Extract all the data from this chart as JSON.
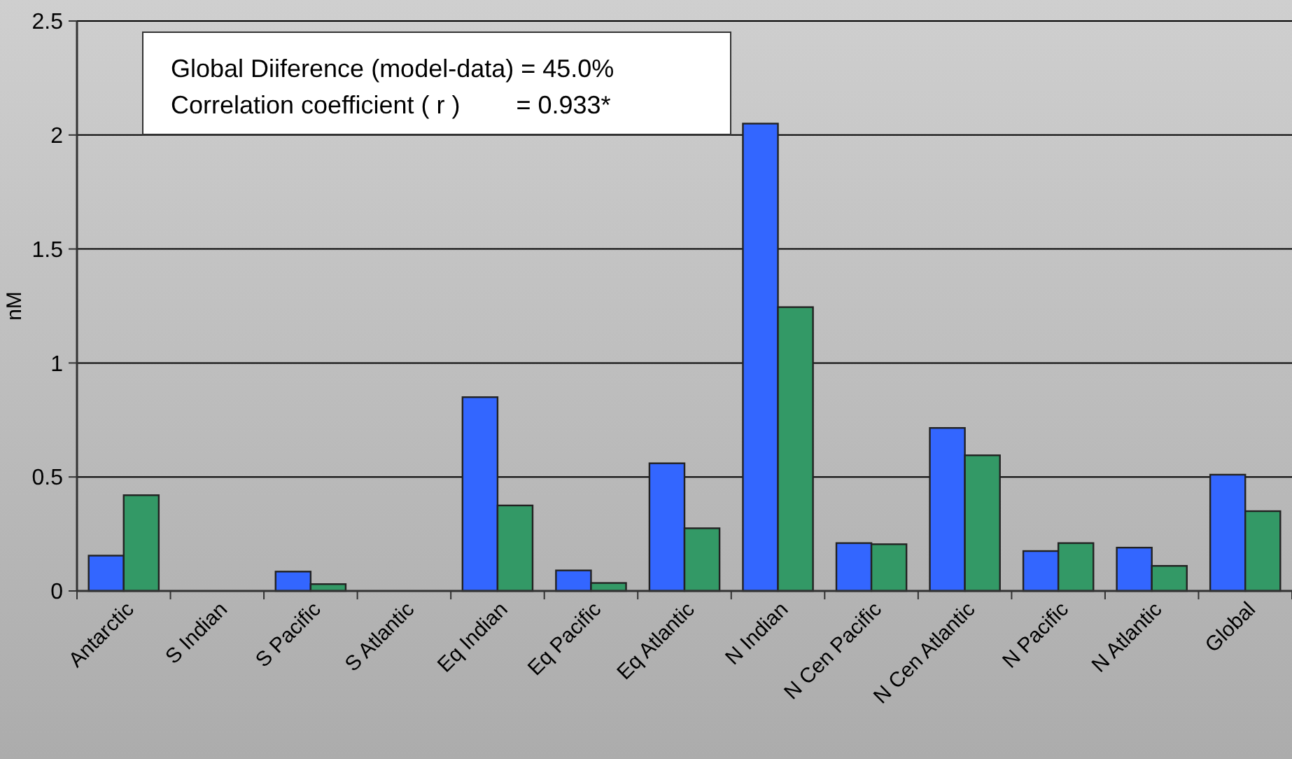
{
  "chart_data": {
    "type": "bar",
    "ylabel": "nM",
    "categories": [
      "Antarctic",
      "S Indian",
      "S Pacific",
      "S Atlantic",
      "Eq Indian",
      "Eq Pacific",
      "Eq Atlantic",
      "N Indian",
      "N Cen Pacific",
      "N Cen Atlantic",
      "N Pacific",
      "N Atlantic",
      "Global"
    ],
    "series": [
      {
        "color": "#3366ff",
        "values": [
          0.155,
          0,
          0.085,
          0,
          0.85,
          0.09,
          0.56,
          2.05,
          0.21,
          0.715,
          0.175,
          0.19,
          0.51
        ]
      },
      {
        "color": "#339966",
        "values": [
          0.42,
          0,
          0.03,
          0,
          0.375,
          0.035,
          0.275,
          1.245,
          0.205,
          0.595,
          0.21,
          0.11,
          0.35
        ]
      }
    ],
    "ylim": [
      0,
      2.5
    ],
    "yticks": [
      0,
      0.5,
      1,
      1.5,
      2,
      2.5
    ],
    "grid": "y",
    "annotations": [
      "Global Diiference (model-data) = 45.0%",
      "Correlation coefficient ( r )        = 0.933*"
    ]
  }
}
